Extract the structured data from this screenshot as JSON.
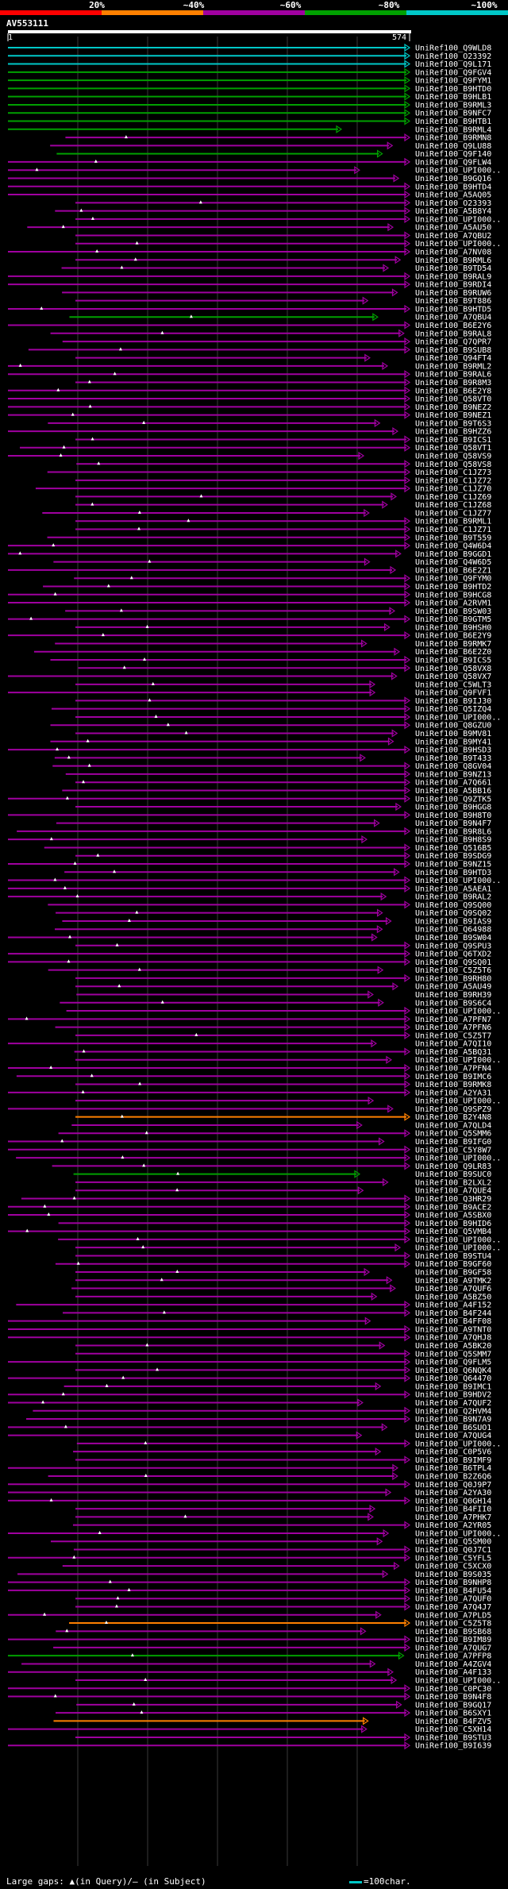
{
  "legend": {
    "labels": [
      "20%",
      "~40%",
      "~60%",
      "~80%",
      "~100%"
    ],
    "colors": [
      "#ff0000",
      "#ff8000",
      "#a000a0",
      "#00a000",
      "#00c8c8"
    ]
  },
  "query": {
    "title": "AV553111",
    "start": "1",
    "end": "574"
  },
  "hits": [
    {
      "id": "UniRef100_Q9WLD8",
      "color": "#00c8c8"
    },
    {
      "id": "UniRef100_O23392",
      "color": "#00c8c8"
    },
    {
      "id": "UniRef100_Q9L171",
      "color": "#00c8c8"
    },
    {
      "id": "UniRef100_Q9FGV4",
      "color": "#00a000"
    },
    {
      "id": "UniRef100_Q9FYM1",
      "color": "#00a000"
    },
    {
      "id": "UniRef100_B9HTD0",
      "color": "#00a000"
    },
    {
      "id": "UniRef100_B9HLB1",
      "color": "#00a000"
    },
    {
      "id": "UniRef100_B9RML3",
      "color": "#00a000"
    },
    {
      "id": "UniRef100_B9NFC7",
      "color": "#00a000"
    },
    {
      "id": "UniRef100_B9HTB1",
      "color": "#00a000"
    },
    {
      "id": "UniRef100_B9RML4",
      "color": "#00a000"
    },
    {
      "id": "UniRef100_B9RMN8",
      "color": "#a000a0"
    },
    {
      "id": "UniRef100_Q9LU88",
      "color": "#a000a0"
    },
    {
      "id": "UniRef100_Q9F140",
      "color": "#00a000"
    },
    {
      "id": "UniRef100_Q9FLW4",
      "color": "#a000a0"
    },
    {
      "id": "UniRef100_UPI000..",
      "color": "#a000a0"
    },
    {
      "id": "UniRef100_B9GQ16",
      "color": "#a000a0"
    },
    {
      "id": "UniRef100_B9HTD4",
      "color": "#a000a0"
    },
    {
      "id": "UniRef100_A5AQ05",
      "color": "#a000a0"
    },
    {
      "id": "UniRef100_O23393",
      "color": "#a000a0"
    },
    {
      "id": "UniRef100_A5B8Y4",
      "color": "#a000a0"
    },
    {
      "id": "UniRef100_UPI000..",
      "color": "#a000a0"
    },
    {
      "id": "UniRef100_A5AU50",
      "color": "#a000a0"
    },
    {
      "id": "UniRef100_A7QBU2",
      "color": "#a000a0"
    },
    {
      "id": "UniRef100_UPI000..",
      "color": "#a000a0"
    },
    {
      "id": "UniRef100_A7NV08",
      "color": "#a000a0"
    },
    {
      "id": "UniRef100_B9RML6",
      "color": "#a000a0"
    },
    {
      "id": "UniRef100_B9TD54",
      "color": "#a000a0"
    },
    {
      "id": "UniRef100_B9RAL9",
      "color": "#a000a0"
    },
    {
      "id": "UniRef100_B9RDI4",
      "color": "#a000a0"
    },
    {
      "id": "UniRef100_B9RUW6",
      "color": "#a000a0"
    },
    {
      "id": "UniRef100_B9T886",
      "color": "#a000a0"
    },
    {
      "id": "UniRef100_B9HTD5",
      "color": "#a000a0"
    },
    {
      "id": "UniRef100_A7QBU4",
      "color": "#00a000"
    },
    {
      "id": "UniRef100_B6E2Y6",
      "color": "#a000a0"
    },
    {
      "id": "UniRef100_B9RAL8",
      "color": "#a000a0"
    },
    {
      "id": "UniRef100_Q7QPR7",
      "color": "#a000a0"
    },
    {
      "id": "UniRef100_B9SUB8",
      "color": "#a000a0"
    },
    {
      "id": "UniRef100_Q94FT4",
      "color": "#a000a0"
    },
    {
      "id": "UniRef100_B9RML2",
      "color": "#a000a0"
    },
    {
      "id": "UniRef100_B9RAL6",
      "color": "#a000a0"
    },
    {
      "id": "UniRef100_B9R8M3",
      "color": "#a000a0"
    },
    {
      "id": "UniRef100_B6E2Y8",
      "color": "#a000a0"
    },
    {
      "id": "UniRef100_Q58VT0",
      "color": "#a000a0"
    },
    {
      "id": "UniRef100_B9NEZ2",
      "color": "#a000a0"
    },
    {
      "id": "UniRef100_B9NEZ1",
      "color": "#a000a0"
    },
    {
      "id": "UniRef100_B9T6S3",
      "color": "#a000a0"
    },
    {
      "id": "UniRef100_B9HZZ6",
      "color": "#a000a0"
    },
    {
      "id": "UniRef100_B9ICS1",
      "color": "#a000a0"
    },
    {
      "id": "UniRef100_Q58VT1",
      "color": "#a000a0"
    },
    {
      "id": "UniRef100_Q58VS9",
      "color": "#a000a0"
    },
    {
      "id": "UniRef100_Q58VS8",
      "color": "#a000a0"
    },
    {
      "id": "UniRef100_C1JZ73",
      "color": "#a000a0"
    },
    {
      "id": "UniRef100_C1JZ72",
      "color": "#a000a0"
    },
    {
      "id": "UniRef100_C1JZ70",
      "color": "#a000a0"
    },
    {
      "id": "UniRef100_C1JZ69",
      "color": "#a000a0"
    },
    {
      "id": "UniRef100_C1JZ68",
      "color": "#a000a0"
    },
    {
      "id": "UniRef100_C1JZ77",
      "color": "#a000a0"
    },
    {
      "id": "UniRef100_B9RML1",
      "color": "#a000a0"
    },
    {
      "id": "UniRef100_C1JZ71",
      "color": "#a000a0"
    },
    {
      "id": "UniRef100_B9T559",
      "color": "#a000a0"
    },
    {
      "id": "UniRef100_Q4W6D4",
      "color": "#a000a0"
    },
    {
      "id": "UniRef100_B9GGD1",
      "color": "#a000a0"
    },
    {
      "id": "UniRef100_Q4W6D5",
      "color": "#a000a0"
    },
    {
      "id": "UniRef100_B6E2Z1",
      "color": "#a000a0"
    },
    {
      "id": "UniRef100_Q9FYM0",
      "color": "#a000a0"
    },
    {
      "id": "UniRef100_B9HTD2",
      "color": "#a000a0"
    },
    {
      "id": "UniRef100_B9HCG8",
      "color": "#a000a0"
    },
    {
      "id": "UniRef100_A2RVM1",
      "color": "#a000a0"
    },
    {
      "id": "UniRef100_B9SW03",
      "color": "#a000a0"
    },
    {
      "id": "UniRef100_B9GTM5",
      "color": "#a000a0"
    },
    {
      "id": "UniRef100_B9HSH0",
      "color": "#a000a0"
    },
    {
      "id": "UniRef100_B6E2Y9",
      "color": "#a000a0"
    },
    {
      "id": "UniRef100_B9RMK7",
      "color": "#a000a0"
    },
    {
      "id": "UniRef100_B6E2Z0",
      "color": "#a000a0"
    },
    {
      "id": "UniRef100_B9ICS5",
      "color": "#a000a0"
    },
    {
      "id": "UniRef100_Q58VX8",
      "color": "#a000a0"
    },
    {
      "id": "UniRef100_Q58VX7",
      "color": "#a000a0"
    },
    {
      "id": "UniRef100_C5WLT3",
      "color": "#a000a0"
    },
    {
      "id": "UniRef100_Q9FVF1",
      "color": "#a000a0"
    },
    {
      "id": "UniRef100_B9IJ30",
      "color": "#a000a0"
    },
    {
      "id": "UniRef100_Q5IZQ4",
      "color": "#a000a0"
    },
    {
      "id": "UniRef100_UPI000..",
      "color": "#a000a0"
    },
    {
      "id": "UniRef100_Q8GZU0",
      "color": "#a000a0"
    },
    {
      "id": "UniRef100_B9MV81",
      "color": "#a000a0"
    },
    {
      "id": "UniRef100_B9MY41",
      "color": "#a000a0"
    },
    {
      "id": "UniRef100_B9HSD3",
      "color": "#a000a0"
    },
    {
      "id": "UniRef100_B9T433",
      "color": "#a000a0"
    },
    {
      "id": "UniRef100_Q8GV04",
      "color": "#a000a0"
    },
    {
      "id": "UniRef100_B9NZ13",
      "color": "#a000a0"
    },
    {
      "id": "UniRef100_A7Q661",
      "color": "#a000a0"
    },
    {
      "id": "UniRef100_A5BB16",
      "color": "#a000a0"
    },
    {
      "id": "UniRef100_Q9ZTK5",
      "color": "#a000a0"
    },
    {
      "id": "UniRef100_B9HGG8",
      "color": "#a000a0"
    },
    {
      "id": "UniRef100_B9H8T0",
      "color": "#a000a0"
    },
    {
      "id": "UniRef100_B9N4F7",
      "color": "#a000a0"
    },
    {
      "id": "UniRef100_B9R8L6",
      "color": "#a000a0"
    },
    {
      "id": "UniRef100_B9H8S9",
      "color": "#a000a0"
    },
    {
      "id": "UniRef100_Q516B5",
      "color": "#a000a0"
    },
    {
      "id": "UniRef100_B9SDG9",
      "color": "#a000a0"
    },
    {
      "id": "UniRef100_B9NZ15",
      "color": "#a000a0"
    },
    {
      "id": "UniRef100_B9HTD3",
      "color": "#a000a0"
    },
    {
      "id": "UniRef100_UPI000..",
      "color": "#a000a0"
    },
    {
      "id": "UniRef100_A5AEA1",
      "color": "#a000a0"
    },
    {
      "id": "UniRef100_B9RAL2",
      "color": "#a000a0"
    },
    {
      "id": "UniRef100_Q9SQ00",
      "color": "#a000a0"
    },
    {
      "id": "UniRef100_Q9SQ02",
      "color": "#a000a0"
    },
    {
      "id": "UniRef100_B9IAS9",
      "color": "#a000a0"
    },
    {
      "id": "UniRef100_Q64988",
      "color": "#a000a0"
    },
    {
      "id": "UniRef100_B9SW04",
      "color": "#a000a0"
    },
    {
      "id": "UniRef100_Q9SPU3",
      "color": "#a000a0"
    },
    {
      "id": "UniRef100_Q6TXD2",
      "color": "#a000a0"
    },
    {
      "id": "UniRef100_Q9SQ01",
      "color": "#a000a0"
    },
    {
      "id": "UniRef100_C5Z5T6",
      "color": "#a000a0"
    },
    {
      "id": "UniRef100_B9RH80",
      "color": "#a000a0"
    },
    {
      "id": "UniRef100_A5AU49",
      "color": "#a000a0"
    },
    {
      "id": "UniRef100_B9RH39",
      "color": "#a000a0"
    },
    {
      "id": "UniRef100_B9S6C4",
      "color": "#a000a0"
    },
    {
      "id": "UniRef100_UPI000..",
      "color": "#a000a0"
    },
    {
      "id": "UniRef100_A7PFN7",
      "color": "#a000a0"
    },
    {
      "id": "UniRef100_A7PFN6",
      "color": "#a000a0"
    },
    {
      "id": "UniRef100_C5Z5T7",
      "color": "#a000a0"
    },
    {
      "id": "UniRef100_A7QI10",
      "color": "#a000a0"
    },
    {
      "id": "UniRef100_A5BQ31",
      "color": "#a000a0"
    },
    {
      "id": "UniRef100_UPI000..",
      "color": "#a000a0"
    },
    {
      "id": "UniRef100_A7PFN4",
      "color": "#a000a0"
    },
    {
      "id": "UniRef100_B9IMC6",
      "color": "#a000a0"
    },
    {
      "id": "UniRef100_B9RMK8",
      "color": "#a000a0"
    },
    {
      "id": "UniRef100_A2YA31",
      "color": "#a000a0"
    },
    {
      "id": "UniRef100_UPI000..",
      "color": "#a000a0"
    },
    {
      "id": "UniRef100_Q9SPZ9",
      "color": "#a000a0"
    },
    {
      "id": "UniRef100_B2Y4N8",
      "color": "#ff8000"
    },
    {
      "id": "UniRef100_A7QLD4",
      "color": "#a000a0"
    },
    {
      "id": "UniRef100_Q5SMM6",
      "color": "#a000a0"
    },
    {
      "id": "UniRef100_B9IFG0",
      "color": "#a000a0"
    },
    {
      "id": "UniRef100_C5Y8W7",
      "color": "#a000a0"
    },
    {
      "id": "UniRef100_UPI000..",
      "color": "#a000a0"
    },
    {
      "id": "UniRef100_Q9LR83",
      "color": "#a000a0"
    },
    {
      "id": "UniRef100_B9SUC0",
      "color": "#00a000"
    },
    {
      "id": "UniRef100_B2LXL2",
      "color": "#a000a0"
    },
    {
      "id": "UniRef100_A7QUE4",
      "color": "#a000a0"
    },
    {
      "id": "UniRef100_Q3HR29",
      "color": "#a000a0"
    },
    {
      "id": "UniRef100_B9ACE2",
      "color": "#a000a0"
    },
    {
      "id": "UniRef100_A5SBX0",
      "color": "#a000a0"
    },
    {
      "id": "UniRef100_B9HID6",
      "color": "#a000a0"
    },
    {
      "id": "UniRef100_Q5VMB4",
      "color": "#a000a0"
    },
    {
      "id": "UniRef100_UPI000..",
      "color": "#a000a0"
    },
    {
      "id": "UniRef100_UPI000..",
      "color": "#a000a0"
    },
    {
      "id": "UniRef100_B9STU4",
      "color": "#a000a0"
    },
    {
      "id": "UniRef100_B9GF60",
      "color": "#a000a0"
    },
    {
      "id": "UniRef100_B9GF58",
      "color": "#a000a0"
    },
    {
      "id": "UniRef100_A9TMK2",
      "color": "#a000a0"
    },
    {
      "id": "UniRef100_A7QUF6",
      "color": "#a000a0"
    },
    {
      "id": "UniRef100_A5BZ50",
      "color": "#a000a0"
    },
    {
      "id": "UniRef100_A4F152",
      "color": "#a000a0"
    },
    {
      "id": "UniRef100_B4F244",
      "color": "#a000a0"
    },
    {
      "id": "UniRef100_B4FF08",
      "color": "#a000a0"
    },
    {
      "id": "UniRef100_A9TNT0",
      "color": "#a000a0"
    },
    {
      "id": "UniRef100_A7QHJ8",
      "color": "#a000a0"
    },
    {
      "id": "UniRef100_A5BK20",
      "color": "#a000a0"
    },
    {
      "id": "UniRef100_Q5SMM7",
      "color": "#a000a0"
    },
    {
      "id": "UniRef100_Q9FLM5",
      "color": "#a000a0"
    },
    {
      "id": "UniRef100_Q6NQK4",
      "color": "#a000a0"
    },
    {
      "id": "UniRef100_Q64470",
      "color": "#a000a0"
    },
    {
      "id": "UniRef100_B9IMC1",
      "color": "#a000a0"
    },
    {
      "id": "UniRef100_B9HDV2",
      "color": "#a000a0"
    },
    {
      "id": "UniRef100_A7QUF2",
      "color": "#a000a0"
    },
    {
      "id": "UniRef100_Q2HVM4",
      "color": "#a000a0"
    },
    {
      "id": "UniRef100_B9N7A9",
      "color": "#a000a0"
    },
    {
      "id": "UniRef100_B6SUO1",
      "color": "#a000a0"
    },
    {
      "id": "UniRef100_A7QUG4",
      "color": "#a000a0"
    },
    {
      "id": "UniRef100_UPI000..",
      "color": "#a000a0"
    },
    {
      "id": "UniRef100_C0P5V6",
      "color": "#a000a0"
    },
    {
      "id": "UniRef100_B9IMF9",
      "color": "#a000a0"
    },
    {
      "id": "UniRef100_B6TPL4",
      "color": "#a000a0"
    },
    {
      "id": "UniRef100_B2Z6Q6",
      "color": "#a000a0"
    },
    {
      "id": "UniRef100_Q0J9P7",
      "color": "#a000a0"
    },
    {
      "id": "UniRef100_A2YA30",
      "color": "#a000a0"
    },
    {
      "id": "UniRef100_Q0GH14",
      "color": "#a000a0"
    },
    {
      "id": "UniRef100_B4FII0",
      "color": "#a000a0"
    },
    {
      "id": "UniRef100_A7PHK7",
      "color": "#a000a0"
    },
    {
      "id": "UniRef100_A2YR05",
      "color": "#a000a0"
    },
    {
      "id": "UniRef100_UPI000..",
      "color": "#a000a0"
    },
    {
      "id": "UniRef100_Q5SM00",
      "color": "#a000a0"
    },
    {
      "id": "UniRef100_Q0J7C1",
      "color": "#a000a0"
    },
    {
      "id": "UniRef100_C5YFL5",
      "color": "#a000a0"
    },
    {
      "id": "UniRef100_C5XCX0",
      "color": "#a000a0"
    },
    {
      "id": "UniRef100_B9S035",
      "color": "#a000a0"
    },
    {
      "id": "UniRef100_B9NHP8",
      "color": "#a000a0"
    },
    {
      "id": "UniRef100_B4FU54",
      "color": "#a000a0"
    },
    {
      "id": "UniRef100_A7QUF0",
      "color": "#a000a0"
    },
    {
      "id": "UniRef100_A7Q4J7",
      "color": "#a000a0"
    },
    {
      "id": "UniRef100_A7PLD5",
      "color": "#a000a0"
    },
    {
      "id": "UniRef100_C5Z5T8",
      "color": "#ff8000"
    },
    {
      "id": "UniRef100_B9SB68",
      "color": "#a000a0"
    },
    {
      "id": "UniRef100_B9IM89",
      "color": "#a000a0"
    },
    {
      "id": "UniRef100_A7QUG7",
      "color": "#a000a0"
    },
    {
      "id": "UniRef100_A7PFP8",
      "color": "#00a000"
    },
    {
      "id": "UniRef100_A4ZGV4",
      "color": "#a000a0"
    },
    {
      "id": "UniRef100_A4F133",
      "color": "#a000a0"
    },
    {
      "id": "UniRef100_UPI000..",
      "color": "#a000a0"
    },
    {
      "id": "UniRef100_C0PC30",
      "color": "#a000a0"
    },
    {
      "id": "UniRef100_B9N4F8",
      "color": "#a000a0"
    },
    {
      "id": "UniRef100_B9GQ17",
      "color": "#a000a0"
    },
    {
      "id": "UniRef100_B6SXY1",
      "color": "#a000a0"
    },
    {
      "id": "UniRef100_B4FZV5",
      "color": "#ff8000"
    },
    {
      "id": "UniRef100_C5XH14",
      "color": "#a000a0"
    },
    {
      "id": "UniRef100_B9STU3",
      "color": "#a000a0"
    },
    {
      "id": "UniRef100_B9I639",
      "color": "#a000a0"
    }
  ],
  "footer": {
    "text": "Large gaps: ▲(in Query)/— (in Subject)",
    "scale": "=100char."
  }
}
